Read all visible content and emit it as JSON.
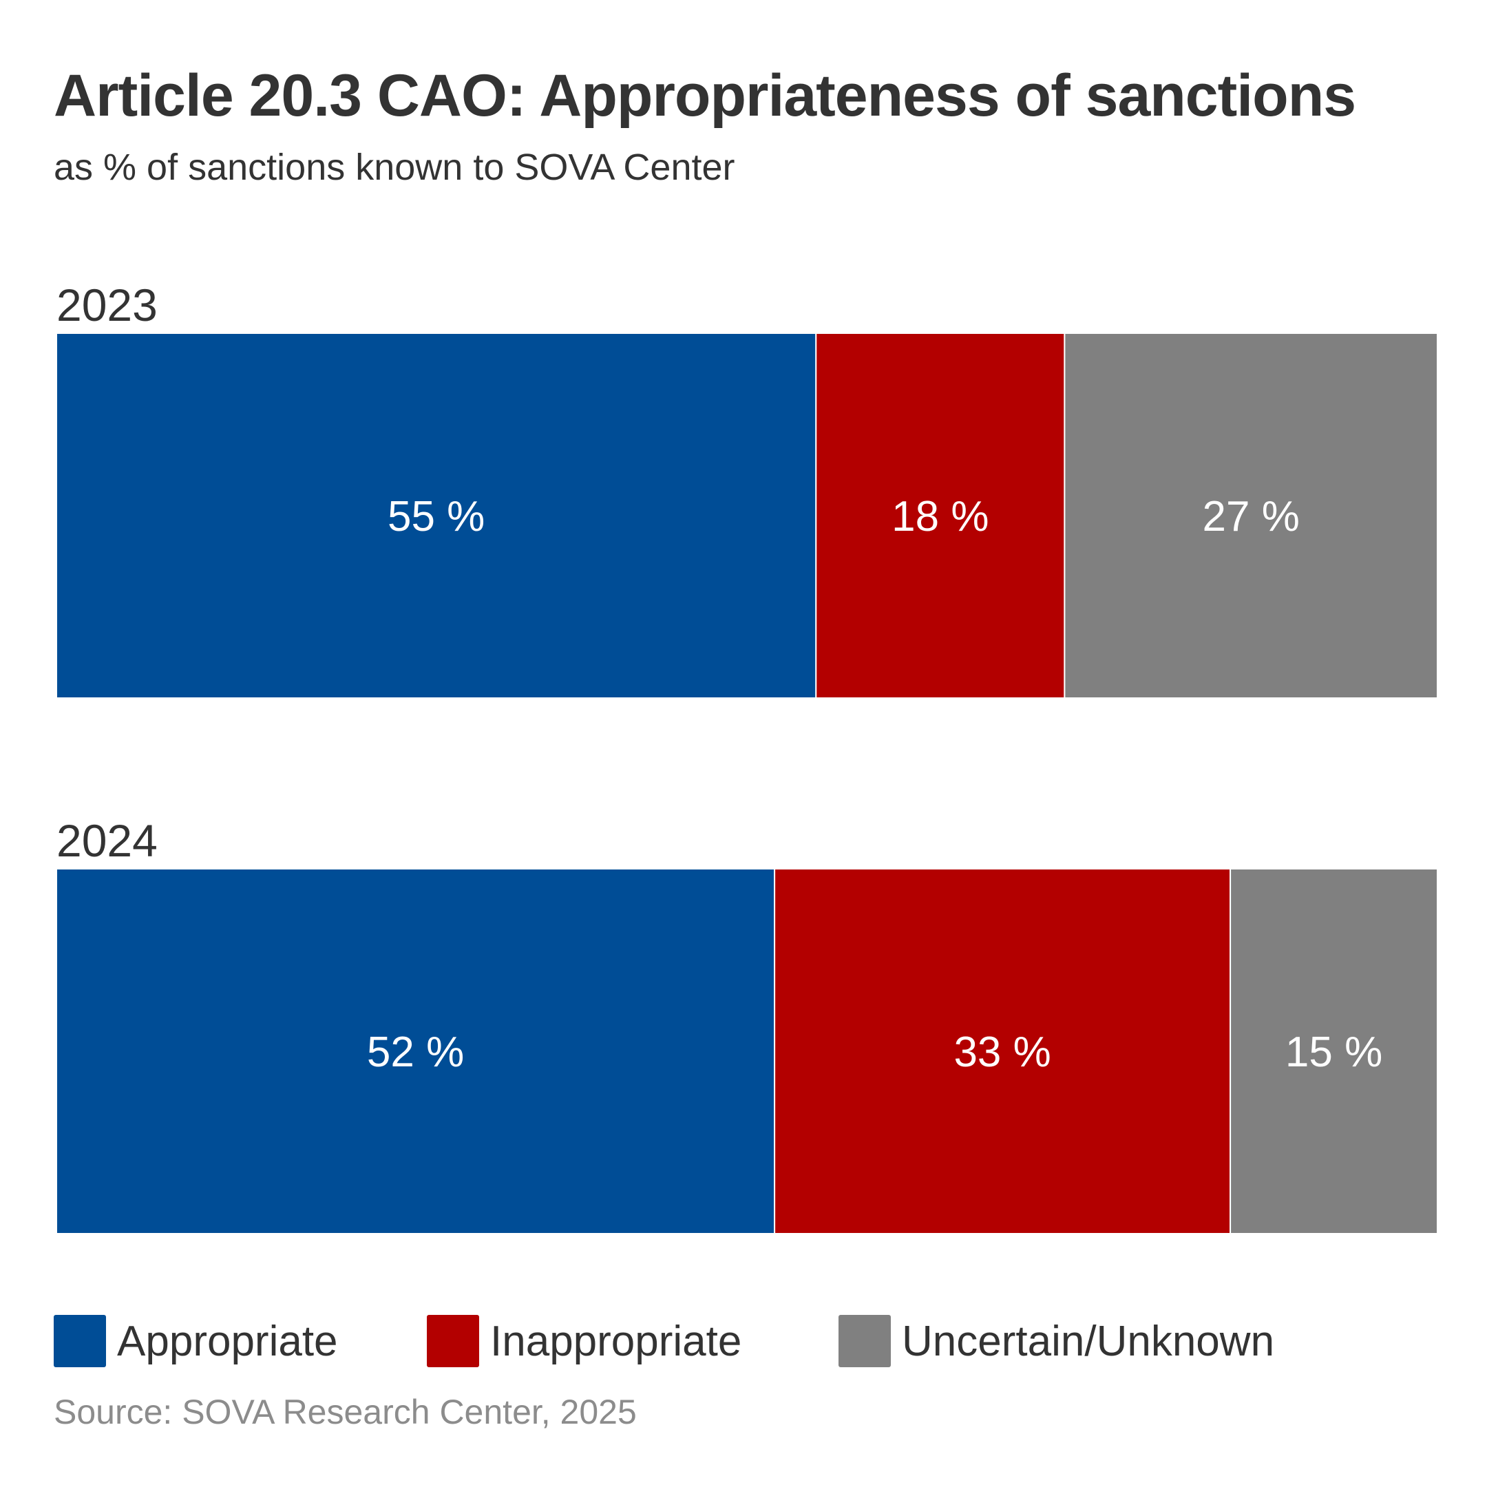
{
  "chart_data": {
    "type": "bar",
    "orientation": "horizontal",
    "stacked": true,
    "title": "Article 20.3 CAO: Appropriateness of sanctions",
    "subtitle": "as % of sanctions known to SOVA Center",
    "categories": [
      "2023",
      "2024"
    ],
    "series": [
      {
        "name": "Appropriate",
        "color": "#004d96",
        "values": [
          55,
          52
        ],
        "labels": [
          "55 %",
          "52 %"
        ]
      },
      {
        "name": "Inappropriate",
        "color": "#b30000",
        "values": [
          18,
          33
        ],
        "labels": [
          "18 %",
          "33 %"
        ]
      },
      {
        "name": "Uncertain/Unknown",
        "color": "#808080",
        "values": [
          27,
          15
        ],
        "labels": [
          "27 %",
          "15 %"
        ]
      }
    ],
    "xlim": [
      0,
      100
    ],
    "grid": false,
    "legend_position": "bottom",
    "source": "Source: SOVA Research Center, 2025"
  }
}
